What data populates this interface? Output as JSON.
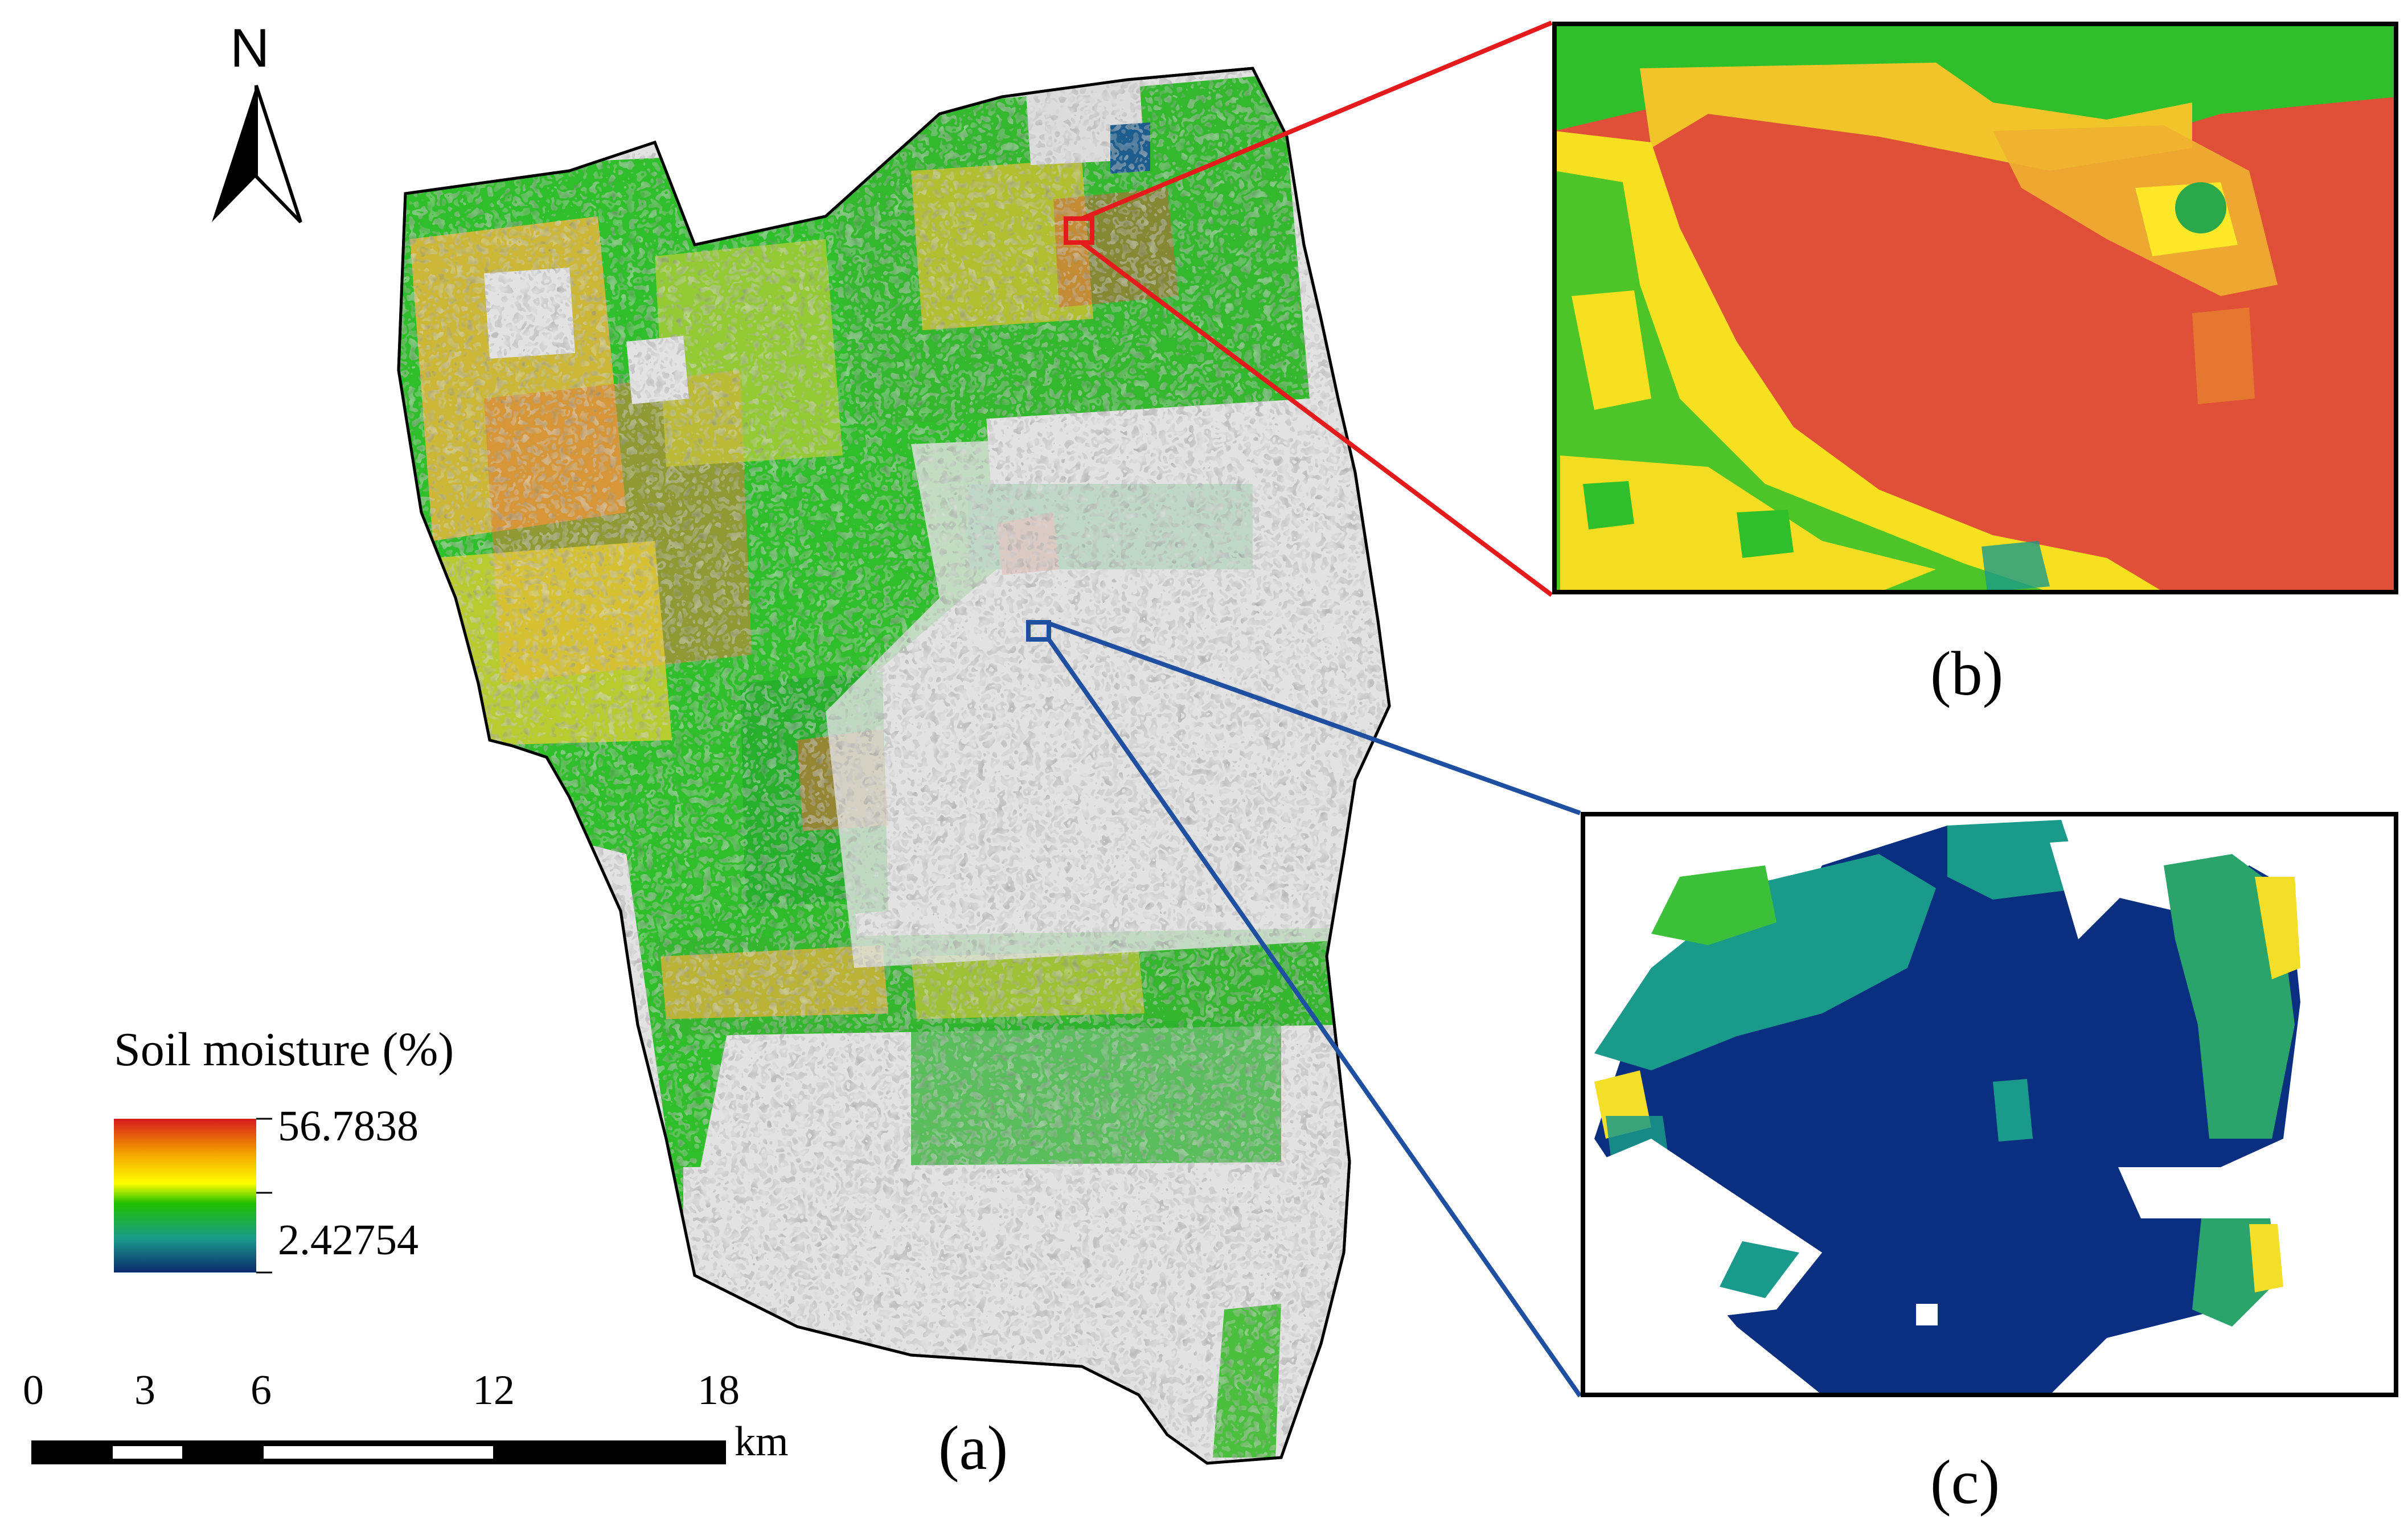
{
  "figure": {
    "north_letter": "N",
    "panel_labels": {
      "a": "(a)",
      "b": "(b)",
      "c": "(c)"
    },
    "legend": {
      "title": "Soil moisture (%)",
      "max_label": "56.7838",
      "min_label": "2.42754",
      "ramp_colors": [
        "#d7191c",
        "#f4a000",
        "#ffff00",
        "#20c000",
        "#1a9a8a",
        "#0c2a6e"
      ]
    },
    "scale_bar": {
      "ticks": [
        "0",
        "3",
        "6",
        "12",
        "18"
      ],
      "unit": "km"
    },
    "colors": {
      "background_region": "#e2e2e2",
      "wet_high": "#e05038",
      "mid_yellow": "#f6e020",
      "mid_green": "#24b424",
      "low_teal": "#1a9a8a",
      "dry_low": "#062a78",
      "zoom_b_outline": "#e41a1c",
      "zoom_c_outline": "#1f4fa0"
    }
  }
}
